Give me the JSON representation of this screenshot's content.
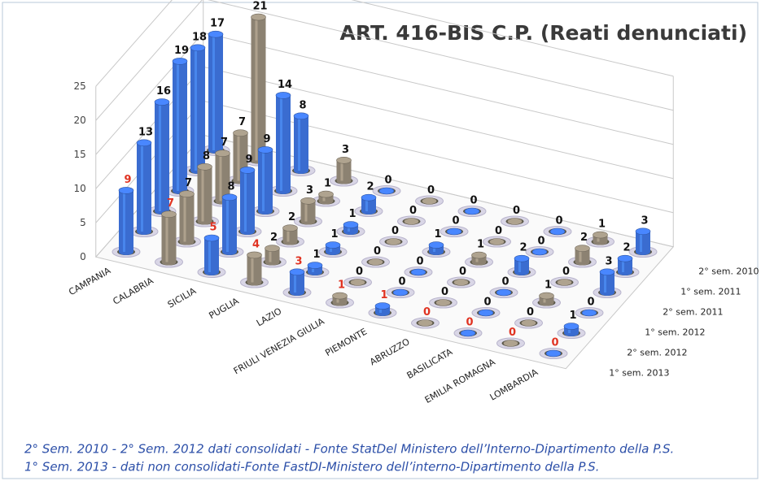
{
  "chart_data": {
    "type": "bar3d",
    "title": "ART. 416-BIS C.P. (Reati denunciati)",
    "categories": [
      "CAMPANIA",
      "CALABRIA",
      "SICILIA",
      "PUGLIA",
      "LAZIO",
      "FRIULI VENEZIA GIULIA",
      "PIEMONTE",
      "ABRUZZO",
      "BASILICATA",
      "EMILIA ROMAGNA",
      "LOMBARDIA"
    ],
    "colors": [
      "#3a6cd0",
      "#8c8272",
      "#3a6cd0",
      "#8c8272",
      "#3a6cd0",
      "#8c8272",
      "#3a6cd0",
      "#8c8272",
      "#3a6cd0",
      "#8c8272",
      "#3a6cd0"
    ],
    "series": [
      {
        "name": "2° sem. 2010",
        "label_color": "#111",
        "values": [
          17,
          21,
          8,
          3,
          0,
          0,
          0,
          0,
          0,
          1,
          3
        ]
      },
      {
        "name": "1° sem. 2011",
        "label_color": "#111",
        "values": [
          18,
          7,
          14,
          1,
          2,
          0,
          0,
          0,
          0,
          2,
          2
        ]
      },
      {
        "name": "2° sem. 2011",
        "label_color": "#111",
        "values": [
          19,
          7,
          9,
          3,
          1,
          0,
          1,
          1,
          2,
          0,
          3
        ]
      },
      {
        "name": "1° sem. 2012",
        "label_color": "#111",
        "values": [
          16,
          8,
          9,
          2,
          1,
          0,
          0,
          0,
          0,
          1,
          0
        ]
      },
      {
        "name": "2° sem. 2012",
        "label_color": "#111",
        "values": [
          13,
          7,
          8,
          2,
          1,
          0,
          0,
          0,
          0,
          0,
          1
        ]
      },
      {
        "name": "1° sem. 2013",
        "label_color": "#e03322",
        "values": [
          9,
          7,
          5,
          4,
          3,
          1,
          1,
          0,
          0,
          0,
          0
        ]
      }
    ],
    "ylim": [
      0,
      25
    ],
    "yticks": [
      0,
      5,
      10,
      15,
      20,
      25
    ],
    "grid": true,
    "notes": [
      "2° Sem. 2010 - 2° Sem. 2012 dati consolidati - Fonte StatDel Ministero dell’Interno-Dipartimento della P.S.",
      "1° Sem. 2013 - dati non consolidati-Fonte FastDI-Ministero dell’interno-Dipartimento della P.S."
    ]
  }
}
